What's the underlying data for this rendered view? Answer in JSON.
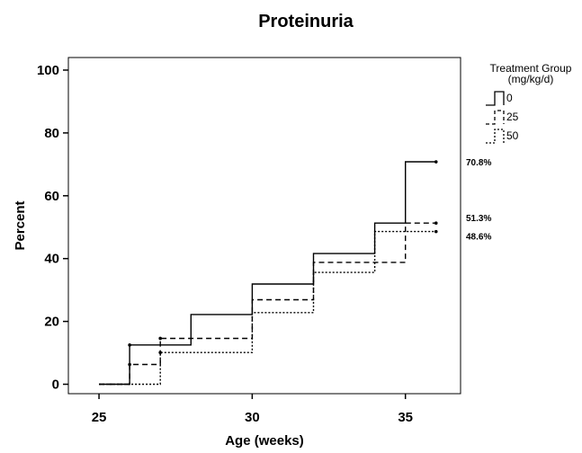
{
  "chart_data": {
    "type": "line",
    "step": true,
    "title": "Proteinuria",
    "xlabel": "Age (weeks)",
    "ylabel": "Percent",
    "xlim": [
      24,
      36.8
    ],
    "ylim": [
      -3,
      104
    ],
    "xticks": [
      25,
      30,
      35
    ],
    "yticks": [
      0,
      20,
      40,
      60,
      80,
      100
    ],
    "grid": false,
    "legend": {
      "title_line1": "Treatment Group",
      "title_line2": "(mg/kg/d)",
      "placement": "right"
    },
    "series": [
      {
        "name": "0",
        "style": "solid",
        "color": "#000000",
        "x": [
          25,
          26,
          26,
          28,
          28,
          30,
          30,
          32,
          32,
          34,
          34,
          35,
          35,
          36
        ],
        "y": [
          0,
          0,
          12.5,
          12.5,
          22.2,
          22.2,
          31.9,
          31.9,
          41.6,
          41.6,
          51.3,
          51.3,
          70.8,
          70.8
        ],
        "markers": [
          [
            26,
            12.5
          ],
          [
            36,
            70.8
          ]
        ],
        "end_label": "70.8%"
      },
      {
        "name": "25",
        "style": "dashed",
        "color": "#000000",
        "x": [
          25,
          26,
          26,
          27,
          27,
          30,
          30,
          32,
          32,
          35,
          35,
          36
        ],
        "y": [
          0,
          0,
          6.3,
          6.3,
          14.6,
          14.6,
          26.9,
          26.9,
          38.8,
          38.8,
          51.3,
          51.3
        ],
        "markers": [
          [
            26,
            6.3
          ],
          [
            27,
            14.6
          ],
          [
            36,
            51.3
          ]
        ],
        "end_label": "51.3%"
      },
      {
        "name": "50",
        "style": "dotted",
        "color": "#000000",
        "x": [
          25,
          27,
          27,
          30,
          30,
          32,
          32,
          34,
          34,
          36
        ],
        "y": [
          0,
          0,
          10.1,
          10.1,
          22.8,
          22.8,
          35.6,
          35.6,
          48.6,
          48.6
        ],
        "markers": [
          [
            27,
            10.1
          ],
          [
            36,
            48.6
          ]
        ],
        "end_label": "48.6%"
      }
    ]
  }
}
